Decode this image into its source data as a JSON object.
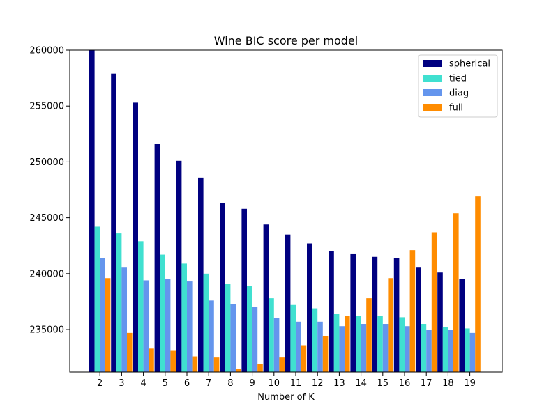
{
  "chart_data": {
    "type": "bar",
    "title": "Wine BIC score per model",
    "xlabel": "Number of K",
    "ylabel": "",
    "categories": [
      "2",
      "3",
      "4",
      "5",
      "6",
      "7",
      "8",
      "9",
      "10",
      "11",
      "12",
      "13",
      "14",
      "15",
      "16",
      "17",
      "18",
      "19"
    ],
    "ylim": [
      231200,
      260000
    ],
    "yticks": [
      235000,
      240000,
      245000,
      250000,
      255000,
      260000
    ],
    "ytick_labels": [
      "235000",
      "240000",
      "245000",
      "250000",
      "255000",
      "260000"
    ],
    "legend_position": "top-right",
    "series": [
      {
        "name": "spherical",
        "color": "#000080",
        "values": [
          260000,
          257900,
          255300,
          251600,
          250100,
          248600,
          246300,
          245800,
          244400,
          243500,
          242700,
          242000,
          241800,
          241500,
          241400,
          240600,
          240100,
          239500
        ]
      },
      {
        "name": "tied",
        "color": "#40e0d0",
        "values": [
          244200,
          243600,
          242900,
          241700,
          240900,
          240000,
          239100,
          238900,
          237800,
          237200,
          236900,
          236400,
          236200,
          236200,
          236100,
          235500,
          235200,
          235100
        ]
      },
      {
        "name": "diag",
        "color": "#6495ed",
        "values": [
          241400,
          240600,
          239400,
          239500,
          239300,
          237600,
          237300,
          237000,
          236000,
          235700,
          235700,
          235300,
          235500,
          235500,
          235300,
          235000,
          235000,
          234700
        ]
      },
      {
        "name": "full",
        "color": "#ff8c00",
        "values": [
          239600,
          234700,
          233300,
          233100,
          232600,
          232500,
          231500,
          231900,
          232500,
          233600,
          234400,
          236200,
          237800,
          239600,
          242100,
          243700,
          245400,
          246900
        ]
      }
    ]
  }
}
